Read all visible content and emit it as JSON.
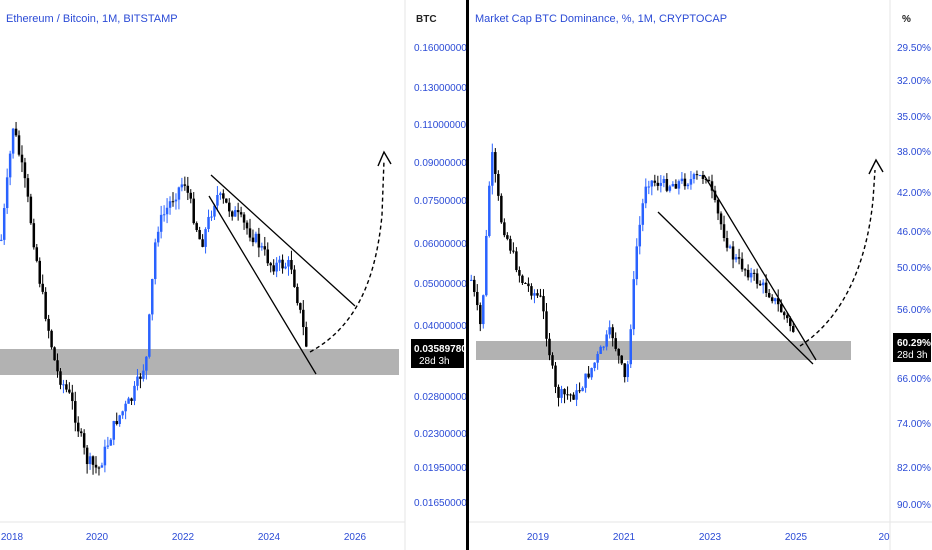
{
  "chart_data": [
    {
      "type": "candlestick",
      "title": "Ethereum / Bitcoin, 1M, BITSTAMP",
      "unit": "BTC",
      "price_label": "0.03589780",
      "countdown": "28d 3h",
      "x_ticks": [
        "2018",
        "2020",
        "2022",
        "2024",
        "2026"
      ],
      "y_ticks": [
        "0.16000000",
        "0.13000000",
        "0.11000000",
        "0.09000000",
        "0.07500000",
        "0.06000000",
        "0.05000000",
        "0.04000000",
        "0.02800000",
        "0.02300000",
        "0.01950000",
        "0.01650000"
      ],
      "ylim": [
        0.0155,
        0.18
      ],
      "y_scale": "log",
      "support_zone": [
        0.0315,
        0.0368
      ],
      "colors": {
        "up": "#2962ff",
        "down": "#000000",
        "zone": "#b2b2b2",
        "label_bg": "#000000"
      }
    },
    {
      "type": "candlestick",
      "title": "Market Cap BTC Dominance, %, 1M, CRYPTOCAP",
      "unit": "%",
      "price_label": "60.29%",
      "countdown": "28d 3h",
      "x_ticks": [
        "2019",
        "2021",
        "2023",
        "2025",
        "20"
      ],
      "y_ticks": [
        "29.50%",
        "32.00%",
        "35.00%",
        "38.00%",
        "42.00%",
        "46.00%",
        "50.00%",
        "56.00%",
        "66.00%",
        "74.00%",
        "82.00%",
        "90.00%"
      ],
      "y_scale": "inverted",
      "support_zone": [
        58.5,
        62.5
      ],
      "colors": {
        "up": "#2962ff",
        "down": "#000000",
        "zone": "#b2b2b2",
        "label_bg": "#000000"
      }
    }
  ]
}
